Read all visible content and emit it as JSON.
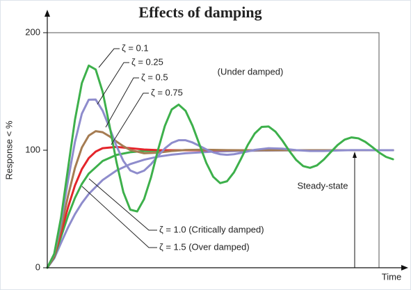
{
  "chart_data": {
    "type": "line",
    "title": "Effects of damping",
    "y_label": "Response < %",
    "x_label": "Time",
    "annotations": [
      "(Under damped)",
      "Steady-state"
    ],
    "xlim": [
      0,
      26
    ],
    "ylim": [
      0,
      200
    ],
    "yticks": [
      0,
      100,
      200
    ],
    "series": [
      {
        "name": "ζ = 0.1",
        "color": "#3db04b",
        "x": [
          0,
          0.5,
          1,
          1.5,
          2,
          2.5,
          3,
          3.5,
          4,
          4.5,
          5,
          5.5,
          6,
          6.5,
          7,
          7.5,
          8,
          8.5,
          9,
          9.5,
          10,
          10.5,
          11,
          11.5,
          12,
          12.5,
          13,
          13.5,
          14,
          14.5,
          15,
          15.5,
          16,
          16.5,
          17,
          17.5,
          18,
          18.5,
          19,
          19.5,
          20,
          20.5,
          21,
          21.5,
          22,
          22.5,
          23,
          23.5,
          24,
          24.5,
          25
        ],
        "values": [
          0,
          11.8,
          43.1,
          84.6,
          125.8,
          157.1,
          172.0,
          168.7,
          149.8,
          121.0,
          90.1,
          64.3,
          49.4,
          47.9,
          58.4,
          76.9,
          100.0,
          120.6,
          134.7,
          138.8,
          133.5,
          120.9,
          105.0,
          89.2,
          77.4,
          72.0,
          73.6,
          81.2,
          92.5,
          104.5,
          114.2,
          119.8,
          120.2,
          115.8,
          108.2,
          99.4,
          91.7,
          86.5,
          85.0,
          87.1,
          92.1,
          98.4,
          104.5,
          109.0,
          110.9,
          110.1,
          107.1,
          102.7,
          98.0,
          94.3,
          92.3
        ]
      },
      {
        "name": "ζ = 0.25",
        "color": "#8e8ccc",
        "x": [
          0,
          0.5,
          1,
          1.5,
          2,
          2.5,
          3,
          3.5,
          4,
          4.5,
          5,
          5.5,
          6,
          6.5,
          7,
          7.5,
          8,
          8.5,
          9,
          9.5,
          10,
          10.5,
          11,
          11.5,
          12,
          12.5,
          13,
          13.5,
          14,
          15,
          16,
          17,
          18,
          19,
          20,
          21,
          22,
          23,
          24,
          25
        ],
        "values": [
          0,
          11.3,
          39.2,
          74.3,
          107.0,
          131.1,
          143.0,
          143.1,
          133.7,
          119.2,
          103.7,
          90.9,
          82.8,
          80.3,
          82.6,
          88.1,
          95.1,
          101.5,
          106.2,
          108.5,
          108.5,
          106.6,
          103.7,
          100.7,
          98.2,
          96.6,
          96.1,
          96.6,
          97.7,
          100.3,
          101.7,
          101.3,
          100.1,
          99.3,
          99.3,
          99.8,
          100.1,
          100.1,
          100.0,
          100.0
        ]
      },
      {
        "name": "ζ = 0.5",
        "color": "#a57c52",
        "x": [
          0,
          0.5,
          1,
          1.5,
          2,
          2.5,
          3,
          3.5,
          4,
          4.5,
          5,
          5.5,
          6,
          7,
          8,
          9,
          10,
          11,
          12,
          13,
          14,
          16,
          18,
          20,
          22,
          25
        ],
        "values": [
          0,
          10.4,
          34.0,
          61.1,
          84.9,
          102.3,
          112.4,
          116.2,
          115.3,
          111.8,
          107.4,
          103.4,
          100.2,
          97.4,
          97.9,
          99.3,
          100.2,
          100.4,
          100.3,
          100.1,
          100,
          100,
          100,
          100,
          100,
          100
        ]
      },
      {
        "name": "ζ = 0.75",
        "color": "#e4252b",
        "x": [
          0,
          0.5,
          1,
          1.5,
          2,
          2.5,
          3,
          3.5,
          4,
          5,
          6,
          7,
          8,
          9,
          10,
          12,
          14,
          16,
          18,
          20,
          22,
          25
        ],
        "values": [
          0,
          9.7,
          29.8,
          51.4,
          70.0,
          83.9,
          93.3,
          98.8,
          101.7,
          102.8,
          101.7,
          100.6,
          100.1,
          99.9,
          100,
          100,
          100,
          100,
          100,
          100,
          100,
          100
        ]
      },
      {
        "name": "ζ = 1.0 (Critically damped)",
        "color": "#3db04b",
        "x": [
          0,
          0.5,
          1,
          1.5,
          2,
          2.5,
          3,
          4,
          5,
          6,
          7,
          8,
          9,
          10,
          12,
          14,
          16,
          18,
          20,
          22,
          25
        ],
        "values": [
          0,
          9.0,
          26.4,
          44.2,
          59.4,
          71.3,
          80.1,
          90.8,
          96.0,
          98.3,
          99.3,
          99.7,
          99.9,
          100.0,
          100,
          100,
          100,
          100,
          100,
          100,
          100
        ]
      },
      {
        "name": "ζ = 1.5 (Over damped)",
        "color": "#8e8ccc",
        "x": [
          0,
          0.5,
          1,
          1.5,
          2,
          2.5,
          3,
          4,
          5,
          6,
          7,
          8,
          9,
          10,
          12,
          14,
          16,
          18,
          20,
          22,
          25
        ],
        "values": [
          0,
          7.9,
          21.3,
          34.3,
          45.6,
          55.0,
          62.8,
          74.6,
          82.7,
          88.2,
          91.9,
          94.5,
          96.2,
          97.4,
          98.8,
          99.4,
          99.7,
          99.9,
          100.0,
          100.0,
          100.0
        ]
      }
    ]
  }
}
